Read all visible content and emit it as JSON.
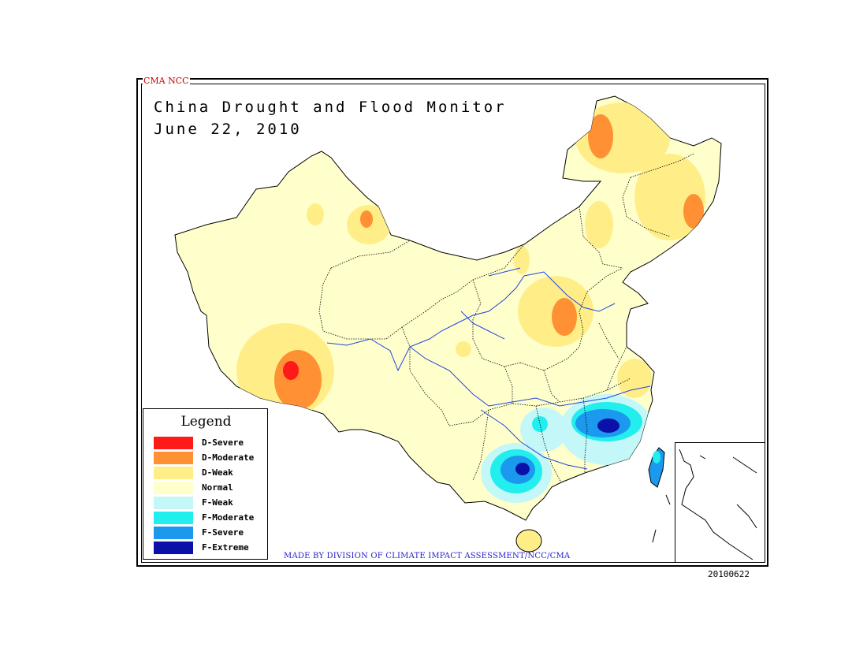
{
  "header": {
    "source_label": "CMA NCC",
    "title": "China Drought and Flood Monitor",
    "date": "June 22, 2010"
  },
  "legend": {
    "title": "Legend",
    "items": [
      {
        "label": "D-Severe",
        "color": "#ff1a1a"
      },
      {
        "label": "D-Moderate",
        "color": "#ff9033"
      },
      {
        "label": "D-Weak",
        "color": "#ffee88"
      },
      {
        "label": "Normal",
        "color": "#ffffcc"
      },
      {
        "label": "F-Weak",
        "color": "#c4f8f8"
      },
      {
        "label": "F-Moderate",
        "color": "#22eeee"
      },
      {
        "label": "F-Severe",
        "color": "#1a99ee"
      },
      {
        "label": "F-Extreme",
        "color": "#0a10a8"
      }
    ]
  },
  "footer": {
    "credit": "MADE BY DIVISION OF CLIMATE IMPACT ASSESSMENT/NCC/CMA",
    "date_code": "20100622"
  },
  "colors": {
    "normal": "#ffffcc",
    "weak_drought": "#ffee88",
    "moderate_drought": "#ff9033",
    "severe_drought": "#ff1a1a",
    "weak_flood": "#c4f8f8",
    "moderate_flood": "#22eeee",
    "severe_flood": "#1a99ee",
    "extreme_flood": "#0a10a8",
    "river": "#2244dd",
    "border": "#000000"
  }
}
